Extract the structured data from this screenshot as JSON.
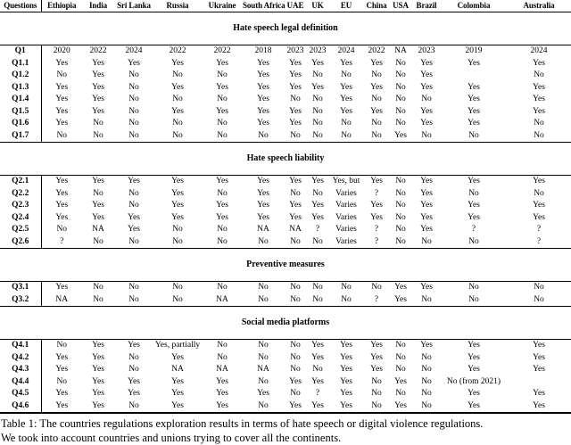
{
  "page": {
    "background_color": "#ffffff",
    "text_color": "#000000"
  },
  "table": {
    "header": {
      "questions_label": "Questions",
      "columns": [
        "Ethiopia",
        "India",
        "Sri Lanka",
        "Russia",
        "Ukraine",
        "South Africa",
        "UAE",
        "UK",
        "EU",
        "China",
        "USA",
        "Brazil",
        "Colombia",
        "Australia"
      ]
    },
    "sections": [
      {
        "title": "Hate speech legal definition",
        "rows": [
          {
            "label": "Q1",
            "values": [
              "2020",
              "2022",
              "2024",
              "2022",
              "2022",
              "2018",
              "2023",
              "2023",
              "2024",
              "2022",
              "NA",
              "2023",
              "2019",
              "2024"
            ]
          },
          {
            "label": "Q1.1",
            "values": [
              "Yes",
              "Yes",
              "Yes",
              "Yes",
              "Yes",
              "Yes",
              "Yes",
              "Yes",
              "Yes",
              "Yes",
              "No",
              "Yes",
              "Yes",
              "Yes"
            ]
          },
          {
            "label": "Q1.2",
            "values": [
              "No",
              "Yes",
              "No",
              "No",
              "No",
              "Yes",
              "Yes",
              "No",
              "No",
              "No",
              "No",
              "Yes",
              "",
              "No"
            ]
          },
          {
            "label": "Q1.3",
            "values": [
              "Yes",
              "Yes",
              "No",
              "Yes",
              "Yes",
              "Yes",
              "Yes",
              "Yes",
              "Yes",
              "Yes",
              "No",
              "Yes",
              "Yes",
              "Yes"
            ]
          },
          {
            "label": "Q1.4",
            "values": [
              "Yes",
              "Yes",
              "No",
              "No",
              "No",
              "Yes",
              "No",
              "No",
              "Yes",
              "No",
              "No",
              "No",
              "Yes",
              "Yes"
            ]
          },
          {
            "label": "Q1.5",
            "values": [
              "Yes",
              "Yes",
              "No",
              "Yes",
              "Yes",
              "Yes",
              "Yes",
              "No",
              "Yes",
              "Yes",
              "No",
              "Yes",
              "Yes",
              "Yes"
            ]
          },
          {
            "label": "Q1.6",
            "values": [
              "Yes",
              "No",
              "No",
              "No",
              "No",
              "Yes",
              "Yes",
              "No",
              "No",
              "No",
              "No",
              "Yes",
              "Yes",
              "No"
            ]
          },
          {
            "label": "Q1.7",
            "values": [
              "No",
              "No",
              "No",
              "No",
              "No",
              "No",
              "No",
              "No",
              "No",
              "No",
              "Yes",
              "No",
              "No",
              "No"
            ]
          }
        ]
      },
      {
        "title": "Hate speech liability",
        "rows": [
          {
            "label": "Q2.1",
            "values": [
              "Yes",
              "Yes",
              "Yes",
              "Yes",
              "Yes",
              "Yes",
              "Yes",
              "Yes",
              "Yes, but",
              "Yes",
              "No",
              "Yes",
              "Yes",
              "Yes"
            ]
          },
          {
            "label": "Q2.2",
            "values": [
              "Yes",
              "No",
              "No",
              "Yes",
              "No",
              "Yes",
              "No",
              "No",
              "Varies",
              "?",
              "No",
              "Yes",
              "No",
              "No"
            ]
          },
          {
            "label": "Q2.3",
            "values": [
              "Yes",
              "Yes",
              "No",
              "Yes",
              "Yes",
              "Yes",
              "Yes",
              "Yes",
              "Varies",
              "Yes",
              "No",
              "Yes",
              "Yes",
              "Yes"
            ]
          },
          {
            "label": "Q2.4",
            "values": [
              "Yes",
              "Yes",
              "Yes",
              "Yes",
              "Yes",
              "Yes",
              "Yes",
              "Yes",
              "Varies",
              "Yes",
              "No",
              "Yes",
              "Yes",
              "Yes"
            ]
          },
          {
            "label": "Q2.5",
            "values": [
              "No",
              "NA",
              "Yes",
              "No",
              "No",
              "NA",
              "NA",
              "?",
              "Varies",
              "?",
              "No",
              "Yes",
              "?",
              "?"
            ]
          },
          {
            "label": "Q2.6",
            "values": [
              "?",
              "No",
              "No",
              "No",
              "No",
              "No",
              "No",
              "No",
              "Varies",
              "?",
              "No",
              "No",
              "No",
              "?"
            ]
          }
        ]
      },
      {
        "title": "Preventive measures",
        "rows": [
          {
            "label": "Q3.1",
            "values": [
              "Yes",
              "No",
              "No",
              "No",
              "No",
              "No",
              "No",
              "No",
              "No",
              "No",
              "Yes",
              "Yes",
              "No",
              "No"
            ]
          },
          {
            "label": "Q3.2",
            "values": [
              "NA",
              "No",
              "No",
              "No",
              "NA",
              "No",
              "No",
              "No",
              "No",
              "?",
              "Yes",
              "No",
              "No",
              "No"
            ]
          }
        ]
      },
      {
        "title": "Social media platforms",
        "rows": [
          {
            "label": "Q4.1",
            "values": [
              "No",
              "Yes",
              "Yes",
              "Yes, partially",
              "No",
              "No",
              "No",
              "Yes",
              "Yes",
              "Yes",
              "No",
              "Yes",
              "Yes",
              "Yes"
            ]
          },
          {
            "label": "Q4.2",
            "values": [
              "Yes",
              "Yes",
              "No",
              "Yes",
              "No",
              "No",
              "No",
              "Yes",
              "Yes",
              "Yes",
              "No",
              "No",
              "Yes",
              "Yes"
            ]
          },
          {
            "label": "Q4.3",
            "values": [
              "Yes",
              "Yes",
              "No",
              "NA",
              "NA",
              "NA",
              "No",
              "No",
              "Yes",
              "Yes",
              "No",
              "No",
              "Yes",
              "Yes"
            ]
          },
          {
            "label": "Q4.4",
            "values": [
              "No",
              "Yes",
              "Yes",
              "Yes",
              "Yes",
              "No",
              "Yes",
              "Yes",
              "Yes",
              "No",
              "Yes",
              "No",
              "No (from 2021)",
              ""
            ]
          },
          {
            "label": "Q4.5",
            "values": [
              "Yes",
              "Yes",
              "Yes",
              "Yes",
              "Yes",
              "Yes",
              "No",
              "?",
              "Yes",
              "No",
              "No",
              "No",
              "Yes",
              "Yes"
            ]
          },
          {
            "label": "Q4.6",
            "values": [
              "Yes",
              "Yes",
              "No",
              "Yes",
              "Yes",
              "No",
              "Yes",
              "Yes",
              "Yes",
              "No",
              "Yes",
              "No",
              "Yes",
              "Yes"
            ]
          }
        ]
      }
    ]
  },
  "caption": {
    "line1": "Table 1: The countries regulations exploration results in terms of hate speech or digital violence regulations.",
    "line2": "We took into account countries and unions trying to cover all the continents."
  }
}
